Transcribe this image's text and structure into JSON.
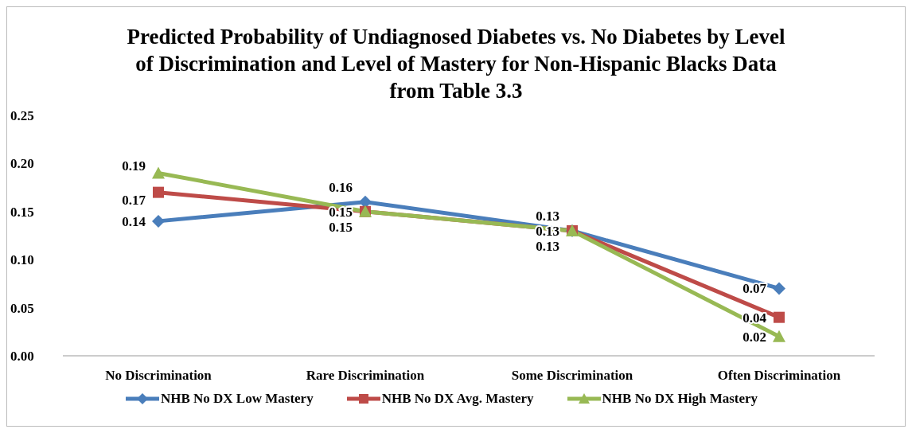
{
  "chart_data": {
    "type": "line",
    "title": "Predicted Probability of Undiagnosed Diabetes vs. No Diabetes by Level of Discrimination and Level of Mastery for Non-Hispanic Blacks Data from Table 3.3",
    "categories": [
      "No Discrimination",
      "Rare Discrimination",
      "Some Discrimination",
      "Often Discrimination"
    ],
    "series": [
      {
        "name": "NHB No DX Low Mastery",
        "color": "#4a7ebb",
        "marker": "diamond",
        "values": [
          0.14,
          0.16,
          0.13,
          0.07
        ]
      },
      {
        "name": "NHB No DX Avg. Mastery",
        "color": "#be4b48",
        "marker": "square",
        "values": [
          0.17,
          0.15,
          0.13,
          0.04
        ]
      },
      {
        "name": "NHB No DX High Mastery",
        "color": "#98b954",
        "marker": "triangle",
        "values": [
          0.19,
          0.15,
          0.13,
          0.02
        ]
      }
    ],
    "ylim": [
      0,
      0.25
    ],
    "yticks": [
      {
        "value": 0,
        "label": "0.00"
      },
      {
        "value": 0.05,
        "label": "0.05"
      },
      {
        "value": 0.1,
        "label": "0.10"
      },
      {
        "value": 0.15,
        "label": "0.15"
      },
      {
        "value": 0.2,
        "label": "0.20"
      },
      {
        "value": 0.25,
        "label": "0.25"
      }
    ],
    "grid": false,
    "legend": "bottom",
    "data_labels": true,
    "line_style": "solid"
  }
}
